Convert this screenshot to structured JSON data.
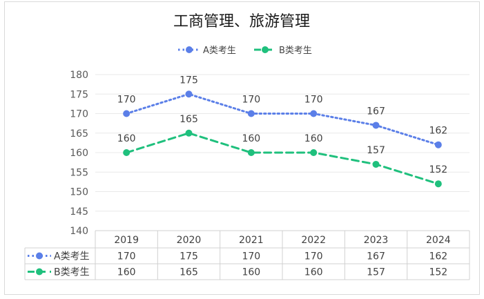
{
  "chart_data": {
    "type": "line",
    "title": "工商管理、旅游管理",
    "categories": [
      "2019",
      "2020",
      "2021",
      "2022",
      "2023",
      "2024"
    ],
    "series": [
      {
        "name": "A类考生",
        "values": [
          170,
          175,
          170,
          170,
          167,
          162
        ],
        "color": "#5b7fe8",
        "style": "dotted"
      },
      {
        "name": "B类考生",
        "values": [
          160,
          165,
          160,
          160,
          157,
          152
        ],
        "color": "#1fc07d",
        "style": "dashed"
      }
    ],
    "ylim": [
      140,
      180
    ],
    "yticks": [
      140,
      145,
      150,
      155,
      160,
      165,
      170,
      175,
      180
    ],
    "grid": true,
    "legend": "top",
    "data_table": true
  }
}
